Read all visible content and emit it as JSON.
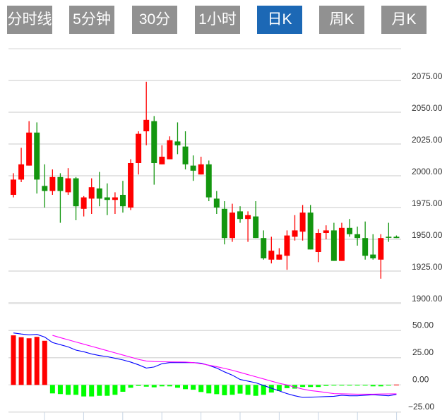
{
  "tabs": [
    {
      "label": "分时线",
      "active": false
    },
    {
      "label": "5分钟",
      "active": false
    },
    {
      "label": "30分钟",
      "active": false
    },
    {
      "label": "1小时",
      "active": false
    },
    {
      "label": "日K",
      "active": true
    },
    {
      "label": "周K",
      "active": false
    },
    {
      "label": "月K",
      "active": false
    }
  ],
  "colors": {
    "up": "#ff0000",
    "down": "#13960f",
    "hist_up": "#ff0000",
    "hist_down": "#00ff00",
    "dif": "#0000ff",
    "dea": "#ff00ff",
    "tab_active": "#1c68b5",
    "tab": "#919191"
  },
  "chart_data": [
    {
      "type": "candlestick",
      "title": "日K",
      "ylim": [
        1900,
        2100
      ],
      "yticks": [
        "2075.00",
        "2050.00",
        "2025.00",
        "2000.00",
        "1975.00",
        "1950.00",
        "1925.00",
        "1900.00"
      ],
      "ytick_values": [
        2075,
        2050,
        2025,
        2000,
        1975,
        1950,
        1925,
        1900
      ],
      "grid": true,
      "fields": [
        "open",
        "close",
        "low",
        "high"
      ],
      "values": [
        [
          1985,
          1997,
          1983,
          2002
        ],
        [
          1997,
          2009,
          1995,
          2022
        ],
        [
          2008,
          2034,
          2008,
          2043
        ],
        [
          2034,
          1997,
          1986,
          2042
        ],
        [
          1992,
          1988,
          1975,
          2009
        ],
        [
          1988,
          1999,
          1985,
          2005
        ],
        [
          1999,
          1988,
          1963,
          2002
        ],
        [
          1987,
          1998,
          1985,
          2006
        ],
        [
          1998,
          1976,
          1965,
          1999
        ],
        [
          1974,
          1983,
          1968,
          1984
        ],
        [
          1982,
          1991,
          1970,
          1998
        ],
        [
          1990,
          1982,
          1976,
          2003
        ],
        [
          1983,
          1981,
          1969,
          1994
        ],
        [
          1981,
          1983,
          1970,
          1987
        ],
        [
          1985,
          1976,
          1971,
          1996
        ],
        [
          1975,
          2010,
          1973,
          2013
        ],
        [
          2010,
          2033,
          2001,
          2035
        ],
        [
          2035,
          2044,
          2024,
          2074
        ],
        [
          2043,
          2010,
          1993,
          2047
        ],
        [
          2009,
          2015,
          2009,
          2024
        ],
        [
          2013,
          2028,
          2013,
          2031
        ],
        [
          2027,
          2024,
          2017,
          2042
        ],
        [
          2023,
          2009,
          2005,
          2035
        ],
        [
          2008,
          2004,
          1996,
          2016
        ],
        [
          2001,
          2009,
          2001,
          2015
        ],
        [
          2009,
          1983,
          1980,
          2012
        ],
        [
          1982,
          1975,
          1970,
          1988
        ],
        [
          1974,
          1951,
          1946,
          1980
        ],
        [
          1951,
          1971,
          1948,
          1978
        ],
        [
          1972,
          1966,
          1963,
          1976
        ],
        [
          1966,
          1969,
          1948,
          1972
        ],
        [
          1968,
          1951,
          1951,
          1980
        ],
        [
          1951,
          1935,
          1934,
          1957
        ],
        [
          1934,
          1941,
          1931,
          1952
        ],
        [
          1934,
          1938,
          1934,
          1943
        ],
        [
          1937,
          1953,
          1926,
          1957
        ],
        [
          1952,
          1957,
          1949,
          1969
        ],
        [
          1956,
          1971,
          1949,
          1977
        ],
        [
          1971,
          1942,
          1942,
          1977
        ],
        [
          1940,
          1955,
          1932,
          1958
        ],
        [
          1955,
          1957,
          1950,
          1961
        ],
        [
          1957,
          1933,
          1933,
          1963
        ],
        [
          1933,
          1959,
          1933,
          1963
        ],
        [
          1959,
          1954,
          1952,
          1966
        ],
        [
          1954,
          1951,
          1945,
          1960
        ],
        [
          1951,
          1937,
          1934,
          1964
        ],
        [
          1938,
          1935,
          1934,
          1954
        ],
        [
          1934,
          1951,
          1919,
          1954
        ],
        [
          1952,
          1951.5,
          1948,
          1963
        ],
        [
          1952,
          1951,
          1951,
          1953
        ]
      ]
    },
    {
      "type": "macd",
      "ylim": [
        -25,
        60
      ],
      "yticks": [
        "50.00",
        "25.00",
        "0.00",
        "−25.00"
      ],
      "ytick_values": [
        50,
        25,
        0,
        -25
      ],
      "grid": true,
      "histogram": [
        45.6,
        43.9,
        42.9,
        44.2,
        40.6,
        -7.8,
        -8.4,
        -9.1,
        -9.1,
        -10.6,
        -10.6,
        -10,
        -10,
        -9.1,
        -6.3,
        -2.6,
        -0.9,
        -1.6,
        -2.2,
        -1.3,
        -1.3,
        -2.6,
        -3.9,
        -4.4,
        -6.5,
        -7.8,
        -8.5,
        -9.5,
        -9.1,
        -8,
        -9.1,
        -10,
        -9.1,
        -7,
        -5.6,
        -3,
        -3.4,
        -1.9,
        -1.9,
        -1.9,
        -0.9,
        -0.5,
        -0.3,
        -0.2,
        -0.2,
        -0.2,
        -1.3,
        -1.3,
        -0.2,
        0.3
      ],
      "dif": [
        47.8,
        46.8,
        46,
        46.5,
        44,
        39,
        37,
        35,
        32,
        30.5,
        28.5,
        27,
        26,
        24.5,
        23,
        21,
        18.5,
        15.5,
        16.5,
        19.5,
        20.5,
        20.5,
        20.5,
        20.5,
        20,
        18,
        15.5,
        12,
        9,
        5,
        3.5,
        2,
        -0.5,
        -3,
        -5.5,
        -8,
        -10,
        -11.5,
        -11.3,
        -11,
        -10.7,
        -10.5,
        -9.5,
        -10,
        -10,
        -9.5,
        -9,
        -9.5,
        -10,
        -8.7
      ],
      "dea": [
        null,
        null,
        null,
        null,
        null,
        45.6,
        43.5,
        41.5,
        39.5,
        37.5,
        35.5,
        33.5,
        31.5,
        29.5,
        27.5,
        25.5,
        23.5,
        22,
        21.5,
        21.3,
        21.2,
        21.1,
        21,
        20.5,
        19.5,
        18.2,
        16.8,
        15.2,
        13.5,
        11.5,
        9.5,
        7.5,
        5.5,
        3.5,
        1.5,
        0,
        -2,
        -3.8,
        -5.2,
        -6,
        -7,
        -8,
        -8.2,
        -8.4,
        -8.5,
        -8.5,
        -8.5,
        -8.4,
        -8.3,
        -8.2
      ]
    }
  ]
}
